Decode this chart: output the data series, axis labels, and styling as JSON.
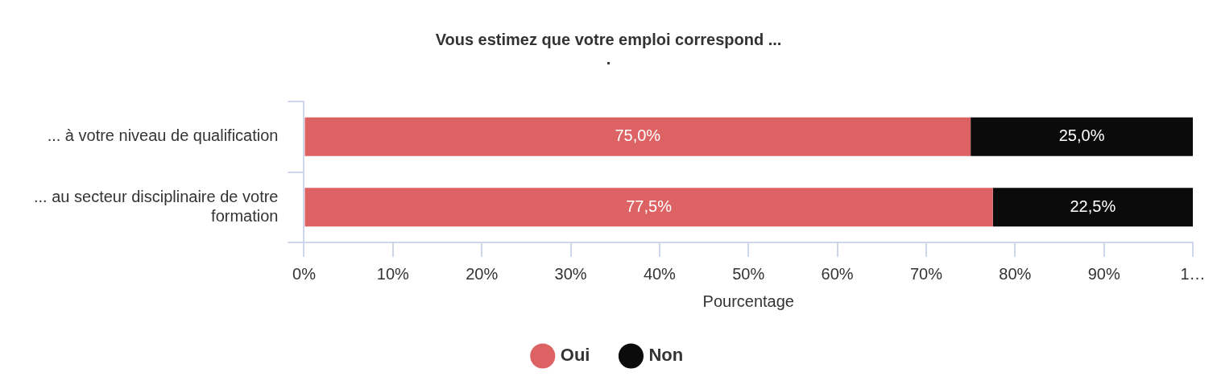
{
  "chart_data": {
    "type": "bar",
    "orientation": "horizontal",
    "stacked": true,
    "title": "Vous estimez que votre emploi correspond ...",
    "subtitle": ".",
    "xlabel": "Pourcentage",
    "categories": [
      "... à votre niveau de qualification",
      "... au secteur disciplinaire de votre formation"
    ],
    "series": [
      {
        "name": "Oui",
        "color": "#dd6263",
        "values": [
          75.0,
          77.5
        ],
        "value_labels": [
          "75,0%",
          "77,5%"
        ]
      },
      {
        "name": "Non",
        "color": "#0b0b0b",
        "values": [
          25.0,
          22.5
        ],
        "value_labels": [
          "25,0%",
          "22,5%"
        ]
      }
    ],
    "xlim": [
      0,
      100
    ],
    "xticks": [
      {
        "value": 0,
        "label": "0%"
      },
      {
        "value": 10,
        "label": "10%"
      },
      {
        "value": 20,
        "label": "20%"
      },
      {
        "value": 30,
        "label": "30%"
      },
      {
        "value": 40,
        "label": "40%"
      },
      {
        "value": 50,
        "label": "50%"
      },
      {
        "value": 60,
        "label": "60%"
      },
      {
        "value": 70,
        "label": "70%"
      },
      {
        "value": 80,
        "label": "80%"
      },
      {
        "value": 90,
        "label": "90%"
      },
      {
        "value": 100,
        "label": "1…"
      }
    ],
    "grid": false,
    "legend": "bottom"
  }
}
